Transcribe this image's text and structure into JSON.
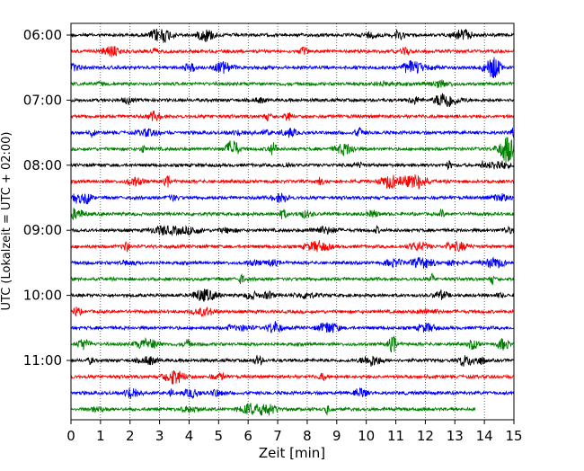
{
  "chart_data": {
    "type": "line",
    "title": "",
    "xlabel": "Zeit  [min]",
    "ylabel": "UTC (Lokalzeit = UTC + 02:00)",
    "xlim": [
      0,
      15
    ],
    "x_ticks": [
      "0",
      "1",
      "2",
      "3",
      "4",
      "5",
      "6",
      "7",
      "8",
      "9",
      "10",
      "11",
      "12",
      "13",
      "14",
      "15"
    ],
    "y_ticks": [
      {
        "label": "06:00",
        "row": 0
      },
      {
        "label": "07:00",
        "row": 4
      },
      {
        "label": "08:00",
        "row": 8
      },
      {
        "label": "09:00",
        "row": 12
      },
      {
        "label": "10:00",
        "row": 16
      },
      {
        "label": "11:00",
        "row": 20
      }
    ],
    "grid": "vertical-dotted",
    "rows_per_hour": 4,
    "row_minutes": 15,
    "series_colors": [
      "#000000",
      "#ff0000",
      "#0000ff",
      "#008000"
    ],
    "rows": [
      {
        "start": "06:00",
        "color": "#000000",
        "end_min": 15
      },
      {
        "start": "06:15",
        "color": "#ff0000",
        "end_min": 15
      },
      {
        "start": "06:30",
        "color": "#0000ff",
        "end_min": 15
      },
      {
        "start": "06:45",
        "color": "#008000",
        "end_min": 15
      },
      {
        "start": "07:00",
        "color": "#000000",
        "end_min": 15
      },
      {
        "start": "07:15",
        "color": "#ff0000",
        "end_min": 15
      },
      {
        "start": "07:30",
        "color": "#0000ff",
        "end_min": 15
      },
      {
        "start": "07:45",
        "color": "#008000",
        "end_min": 15
      },
      {
        "start": "08:00",
        "color": "#000000",
        "end_min": 15
      },
      {
        "start": "08:15",
        "color": "#ff0000",
        "end_min": 15
      },
      {
        "start": "08:30",
        "color": "#0000ff",
        "end_min": 15
      },
      {
        "start": "08:45",
        "color": "#008000",
        "end_min": 15
      },
      {
        "start": "09:00",
        "color": "#000000",
        "end_min": 15
      },
      {
        "start": "09:15",
        "color": "#ff0000",
        "end_min": 15
      },
      {
        "start": "09:30",
        "color": "#0000ff",
        "end_min": 15
      },
      {
        "start": "09:45",
        "color": "#008000",
        "end_min": 15
      },
      {
        "start": "10:00",
        "color": "#000000",
        "end_min": 15
      },
      {
        "start": "10:15",
        "color": "#ff0000",
        "end_min": 15
      },
      {
        "start": "10:30",
        "color": "#0000ff",
        "end_min": 15
      },
      {
        "start": "10:45",
        "color": "#008000",
        "end_min": 15
      },
      {
        "start": "11:00",
        "color": "#000000",
        "end_min": 15
      },
      {
        "start": "11:15",
        "color": "#ff0000",
        "end_min": 15
      },
      {
        "start": "11:30",
        "color": "#0000ff",
        "end_min": 15
      },
      {
        "start": "11:45",
        "color": "#008000",
        "end_min": 13.7
      }
    ]
  }
}
